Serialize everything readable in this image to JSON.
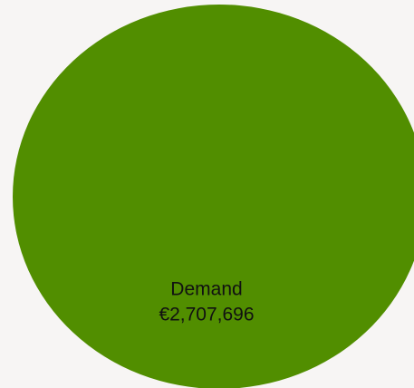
{
  "chart_data": {
    "type": "pie",
    "categories": [
      "Demand"
    ],
    "values": [
      2707696
    ],
    "value_labels": [
      "€2,707,696"
    ],
    "colors": [
      "#518e00"
    ]
  }
}
